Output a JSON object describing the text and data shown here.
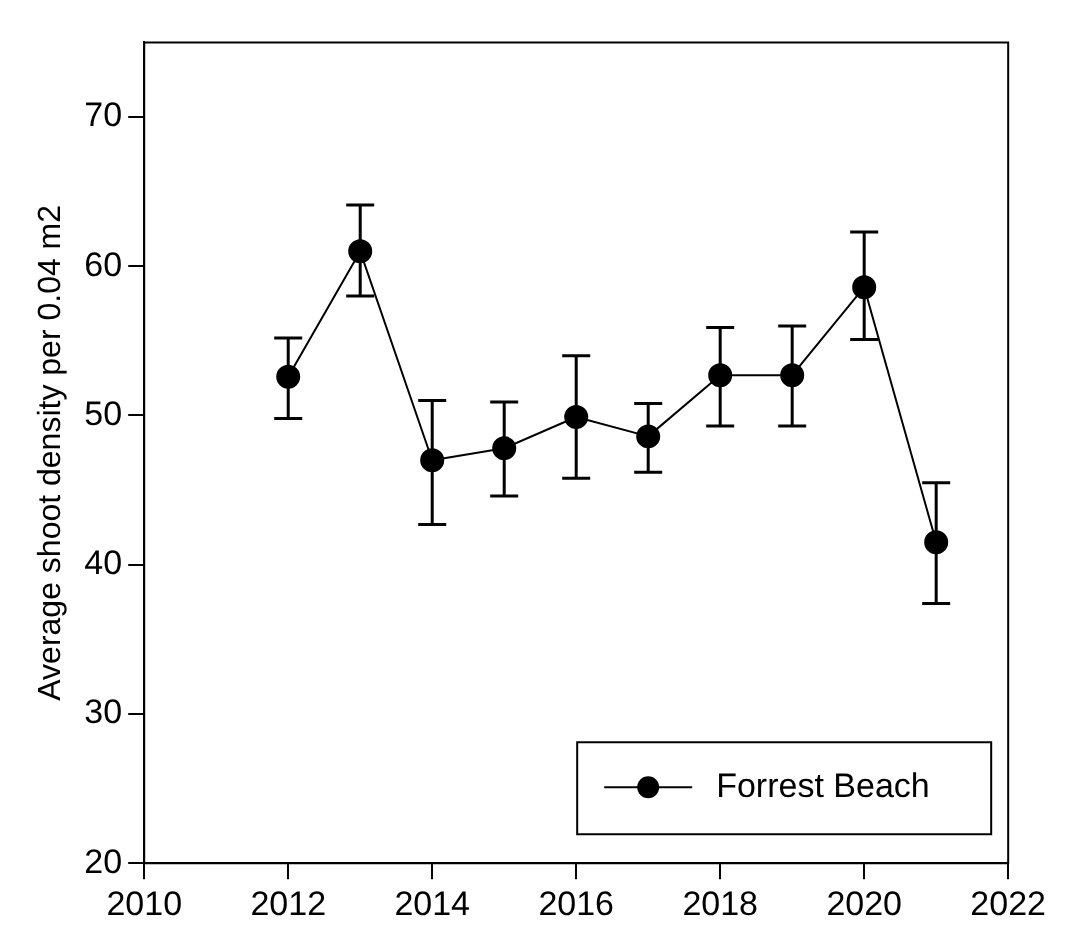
{
  "chart_data": {
    "type": "line",
    "ylabel": "Average shoot density per 0.04 m2",
    "x": [
      2012,
      2013,
      2014,
      2015,
      2016,
      2017,
      2018,
      2019,
      2020,
      2021
    ],
    "series": [
      {
        "name": "Forrest Beach",
        "color": "#000000",
        "values": [
          52.6,
          61.0,
          47.0,
          47.8,
          49.9,
          48.6,
          52.7,
          52.7,
          58.6,
          41.5
        ],
        "errors": [
          [
            49.8,
            55.2
          ],
          [
            58.0,
            64.1
          ],
          [
            42.7,
            51.0
          ],
          [
            44.6,
            50.9
          ],
          [
            45.8,
            54.0
          ],
          [
            46.2,
            50.8
          ],
          [
            49.3,
            55.9
          ],
          [
            49.3,
            56.0
          ],
          [
            55.1,
            62.3
          ],
          [
            37.4,
            45.5
          ]
        ]
      }
    ],
    "xlim": [
      2010,
      2022
    ],
    "xticks": [
      2010,
      2012,
      2014,
      2016,
      2018,
      2020,
      2022
    ],
    "ylim": [
      20,
      75
    ],
    "yticks": [
      20,
      30,
      40,
      50,
      60,
      70
    ],
    "grid": false,
    "legend": "bottom right",
    "marker": "circle",
    "line_style": "solid"
  }
}
